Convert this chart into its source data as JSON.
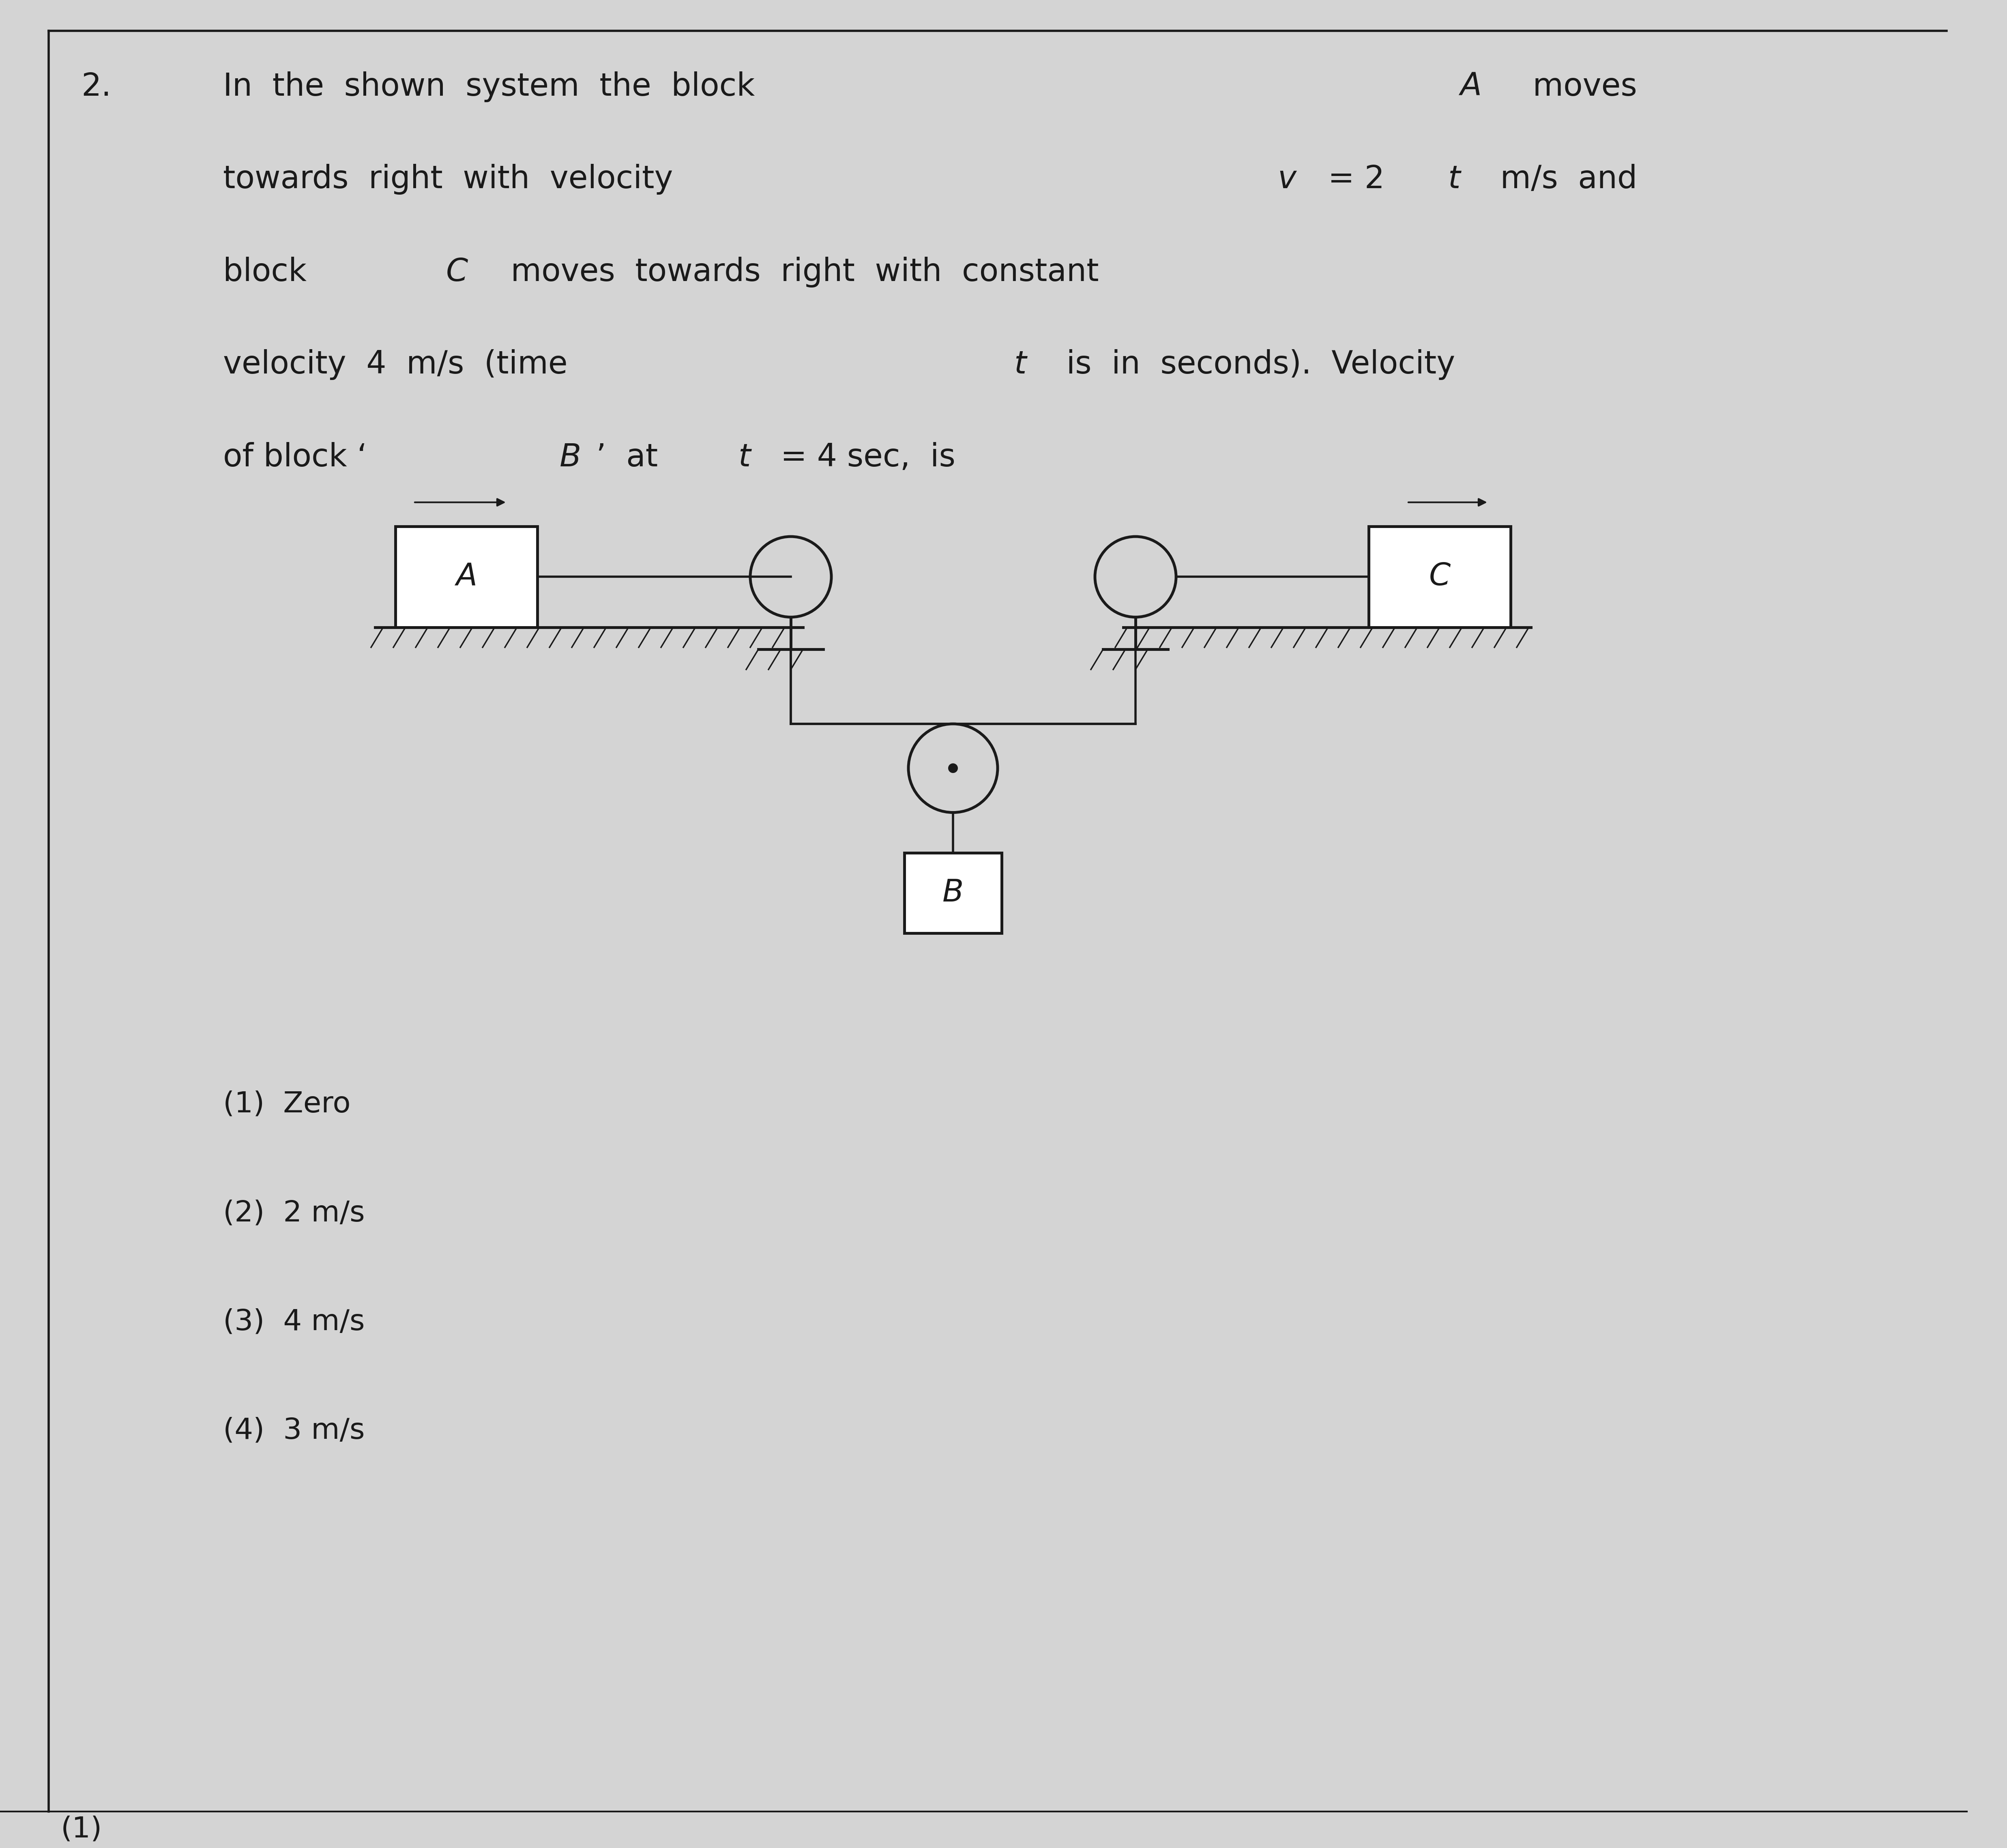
{
  "bg_color": "#d4d4d4",
  "text_color": "#1a1a1a",
  "line_color": "#1a1a1a",
  "title_num": "2.",
  "options": [
    "(1)  Zero",
    "(2)  2 m/s",
    "(3)  4 m/s",
    "(4)  3 m/s"
  ],
  "footer": "(1)",
  "font_size_question": 56,
  "font_size_options": 52,
  "font_size_diagram_label": 55
}
